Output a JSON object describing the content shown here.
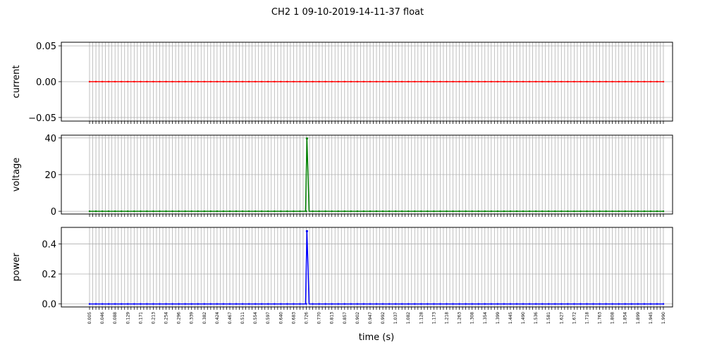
{
  "title": "CH2   1   09-10-2019-14-11-37   float",
  "chart_data": [
    {
      "type": "line",
      "ylabel": "current",
      "ylim": [
        -0.055,
        0.055
      ],
      "yticks": [
        0.05,
        0.0,
        -0.05
      ],
      "ytick_labels": [
        "0.05",
        "0.00",
        "−0.05"
      ],
      "color": "#ff0000",
      "x_range": [
        0.005,
        1.99
      ],
      "baseline": 0.0,
      "spike": null,
      "grid": true
    },
    {
      "type": "line",
      "ylabel": "voltage",
      "ylim": [
        -1.5,
        41.5
      ],
      "yticks": [
        40,
        20,
        0
      ],
      "ytick_labels": [
        "40",
        "20",
        "0"
      ],
      "color": "#008000",
      "x_range": [
        0.005,
        1.99
      ],
      "baseline": 0.0,
      "spike": {
        "x": 0.757,
        "y": 39.7
      },
      "grid": true
    },
    {
      "type": "line",
      "ylabel": "power",
      "xlabel": "time (s)",
      "ylim": [
        -0.02,
        0.51
      ],
      "yticks": [
        0.4,
        0.2,
        0.0
      ],
      "ytick_labels": [
        "0.4",
        "0.2",
        "0.0"
      ],
      "color": "#0000ff",
      "x_range": [
        0.005,
        1.99
      ],
      "baseline": 0.0,
      "spike": {
        "x": 0.757,
        "y": 0.485
      },
      "grid": true
    }
  ],
  "x_axis": {
    "xlabel": "time (s)",
    "tick_labels": [
      "0.005",
      "0.046",
      "0.088",
      "0.129",
      "0.171",
      "0.213",
      "0.254",
      "0.296",
      "0.339",
      "0.382",
      "0.424",
      "0.467",
      "0.511",
      "0.554",
      "0.597",
      "0.640",
      "0.683",
      "0.726",
      "0.770",
      "0.813",
      "0.857",
      "0.902",
      "0.947",
      "0.992",
      "1.037",
      "1.082",
      "1.128",
      "1.173",
      "1.218",
      "1.263",
      "1.308",
      "1.354",
      "1.399",
      "1.445",
      "1.490",
      "1.536",
      "1.581",
      "1.627",
      "1.672",
      "1.718",
      "1.763",
      "1.808",
      "1.854",
      "1.899",
      "1.945",
      "1.990"
    ],
    "minor_ticks_between_labels": 4
  }
}
